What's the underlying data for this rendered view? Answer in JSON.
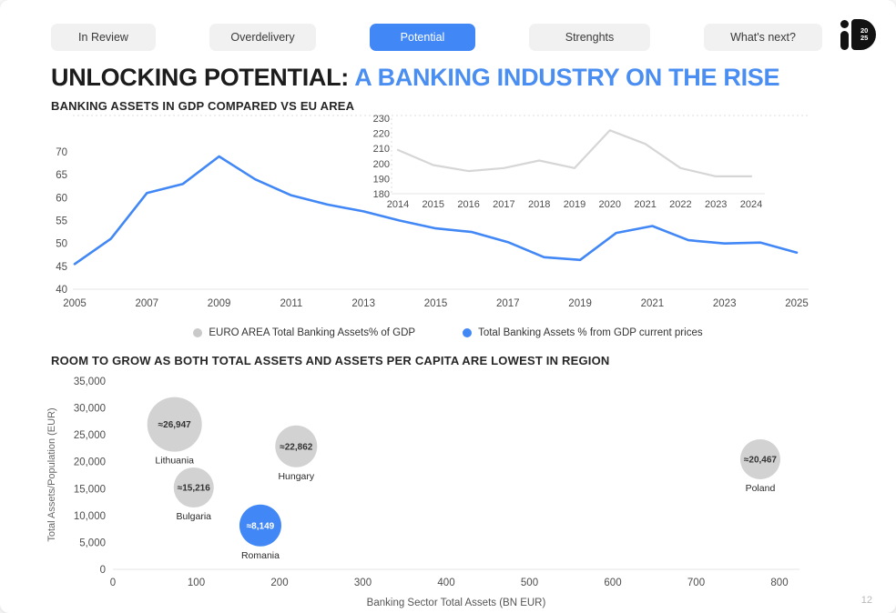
{
  "colors": {
    "accent_blue": "#4187f5",
    "title_blue": "#4a8ef2",
    "euro_line_gray": "#d6d6d6",
    "bubble_gray": "#d2d2d2",
    "legend_gray": "#c9c9c9",
    "axis_text": "#4d4d4d"
  },
  "tabs": [
    {
      "label": "In Review",
      "active": false
    },
    {
      "label": "Overdelivery",
      "active": false
    },
    {
      "label": "Potential",
      "active": true
    },
    {
      "label": "Strenghts",
      "active": false
    },
    {
      "label": "What's next?",
      "active": false
    }
  ],
  "logo": {
    "year_top": "20",
    "year_bottom": "25"
  },
  "title": {
    "prefix": "UNLOCKING POTENTIAL: ",
    "highlight": "A BANKING INDUSTRY ON THE RISE"
  },
  "sections": {
    "banking_assets_heading": "BANKING ASSETS IN GDP COMPARED VS EU AREA",
    "room_to_grow_heading": "ROOM TO GROW AS BOTH TOTAL ASSETS AND ASSETS PER CAPITA ARE LOWEST IN REGION"
  },
  "legend": [
    {
      "label": "EURO AREA Total Banking Assets% of GDP",
      "color": "#c9c9c9"
    },
    {
      "label": "Total Banking Assets % from GDP current prices",
      "color": "#4187f5"
    }
  ],
  "page_number": "12",
  "chart_data": [
    {
      "type": "line",
      "name": "total-banking-assets-pct-gdp-line",
      "series_label": "Total Banking Assets % from GDP current prices",
      "x": [
        2005,
        2006,
        2007,
        2008,
        2009,
        2010,
        2011,
        2012,
        2013,
        2014,
        2015,
        2016,
        2017,
        2018,
        2019,
        2020,
        2021,
        2022,
        2023,
        2024,
        2025
      ],
      "values": [
        45.5,
        51,
        61,
        63,
        69,
        64,
        60.5,
        58.5,
        57,
        55,
        53.3,
        52.5,
        50.3,
        47,
        46.4,
        52.3,
        53.8,
        50.7,
        50,
        50.2,
        48
      ],
      "ylim": [
        40,
        70
      ],
      "ytick_step": 5,
      "xtick_step": 2,
      "grid": false,
      "color": "#4187f5"
    },
    {
      "type": "line",
      "name": "euro-area-banking-assets-pct-gdp-line",
      "series_label": "EURO AREA Total Banking Assets% of GDP",
      "position": "inset-top-right",
      "x": [
        2014,
        2015,
        2016,
        2017,
        2018,
        2019,
        2020,
        2021,
        2022,
        2023,
        2024
      ],
      "values": [
        209,
        199,
        195,
        197,
        202,
        197,
        222,
        213,
        197,
        191.5,
        191.5
      ],
      "ylim": [
        180,
        230
      ],
      "ytick_step": 10,
      "xtick_step": 1,
      "grid": false,
      "color": "#d6d6d6"
    },
    {
      "type": "bubble",
      "name": "assets-per-capita-bubble-chart",
      "xlabel": "Banking Sector Total Assets (BN EUR)",
      "ylabel": "Total Assets/Population (EUR)",
      "xlim": [
        0,
        800
      ],
      "ylim": [
        0,
        35000
      ],
      "xtick_step": 100,
      "ytick_step": 5000,
      "points": [
        {
          "label": "Lithuania",
          "x": 74,
          "y": 26947,
          "value_label": "≈26,947",
          "r": 30,
          "highlight": false
        },
        {
          "label": "Bulgaria",
          "x": 97,
          "y": 15216,
          "value_label": "≈15,216",
          "r": 22,
          "highlight": false
        },
        {
          "label": "Hungary",
          "x": 220,
          "y": 22862,
          "value_label": "≈22,862",
          "r": 23,
          "highlight": false
        },
        {
          "label": "Romania",
          "x": 177,
          "y": 8149,
          "value_label": "≈8,149",
          "r": 23,
          "highlight": true
        },
        {
          "label": "Poland",
          "x": 777,
          "y": 20467,
          "value_label": "≈20,467",
          "r": 22,
          "highlight": false
        }
      ]
    }
  ]
}
